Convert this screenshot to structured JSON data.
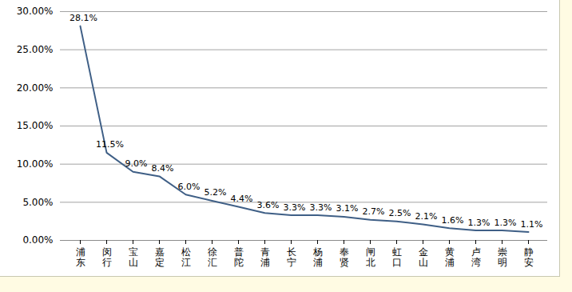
{
  "chart_data": {
    "type": "line",
    "categories": [
      "浦东",
      "闵行",
      "宝山",
      "嘉定",
      "松江",
      "徐汇",
      "普陀",
      "青浦",
      "长宁",
      "杨浦",
      "奉贤",
      "闸北",
      "虹口",
      "金山",
      "黄浦",
      "卢湾",
      "崇明",
      "静安"
    ],
    "values": [
      28.1,
      11.5,
      9.0,
      8.4,
      6.0,
      5.2,
      4.4,
      3.6,
      3.3,
      3.3,
      3.1,
      2.7,
      2.5,
      2.1,
      1.6,
      1.3,
      1.3,
      1.1
    ],
    "value_labels": [
      "28.1%",
      "11.5%",
      "9.0%",
      "8.4%",
      "6.0%",
      "5.2%",
      "4.4%",
      "3.6%",
      "3.3%",
      "3.3%",
      "3.1%",
      "2.7%",
      "2.5%",
      "2.1%",
      "1.6%",
      "1.3%",
      "1.3%",
      "1.1%"
    ],
    "color": "#3f5f86",
    "ylim": [
      0,
      30
    ],
    "yticks": [
      {
        "value": 0,
        "label": "0.00%"
      },
      {
        "value": 5,
        "label": "5.00%"
      },
      {
        "value": 10,
        "label": "10.00%"
      },
      {
        "value": 15,
        "label": "15.00%"
      },
      {
        "value": 20,
        "label": "20.00%"
      },
      {
        "value": 25,
        "label": "25.00%"
      },
      {
        "value": 30,
        "label": "30.00%"
      }
    ],
    "grid": true,
    "data_labels": true
  }
}
